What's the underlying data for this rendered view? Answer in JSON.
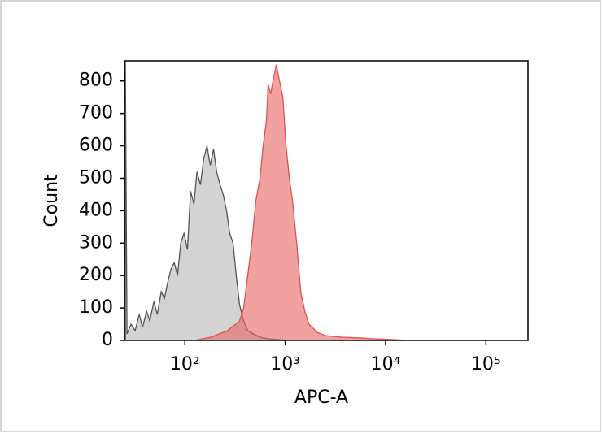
{
  "chart_data": {
    "type": "area",
    "x_label": "APC-A",
    "y_label": "Count",
    "xscale": "log",
    "xlim": [
      25,
      262144
    ],
    "ylim": [
      0,
      862
    ],
    "xticks": [
      {
        "value": 100,
        "label": "10²"
      },
      {
        "value": 1000,
        "label": "10³"
      },
      {
        "value": 10000,
        "label": "10⁴"
      },
      {
        "value": 100000,
        "label": "10⁵"
      }
    ],
    "yticks": [
      0,
      100,
      200,
      300,
      400,
      500,
      600,
      700,
      800
    ],
    "series": [
      {
        "color": "#b5b5b5",
        "stroke": "#555555",
        "x": [
          25.5,
          26.5,
          29.0,
          31.9,
          35.1,
          37.8,
          41.5,
          44.7,
          49.1,
          53.0,
          58.1,
          62.6,
          67.5,
          72.7,
          78.4,
          84.5,
          91.0,
          98,
          106,
          114,
          123,
          132,
          143,
          154,
          166,
          179,
          193,
          207,
          224,
          241,
          260,
          280,
          302,
          325,
          351,
          385,
          423,
          482,
          560,
          675,
          893,
          1183
        ],
        "values": [
          860,
          20,
          50,
          30,
          80,
          40,
          90,
          60,
          120,
          80,
          150,
          130,
          180,
          220,
          240,
          200,
          300,
          330,
          280,
          460,
          420,
          520,
          480,
          560,
          600,
          540,
          590,
          520,
          480,
          450,
          400,
          330,
          300,
          200,
          110,
          60,
          30,
          20,
          10,
          5,
          2,
          0
        ]
      },
      {
        "color": "#e8625f",
        "stroke": "#d9534f",
        "x": [
          125,
          182,
          265,
          351,
          385,
          423,
          464,
          509,
          560,
          603,
          650,
          675,
          714,
          755,
          814,
          877,
          946,
          1019,
          1099,
          1183,
          1300,
          1426,
          1567,
          1722,
          2075,
          2500,
          3640,
          5300,
          7690,
          11200,
          14800,
          19600
        ],
        "values": [
          0,
          10,
          30,
          60,
          100,
          200,
          300,
          430,
          500,
          600,
          680,
          790,
          760,
          800,
          850,
          800,
          750,
          600,
          500,
          430,
          300,
          150,
          90,
          50,
          25,
          15,
          10,
          8,
          5,
          3,
          1,
          0
        ]
      }
    ]
  }
}
